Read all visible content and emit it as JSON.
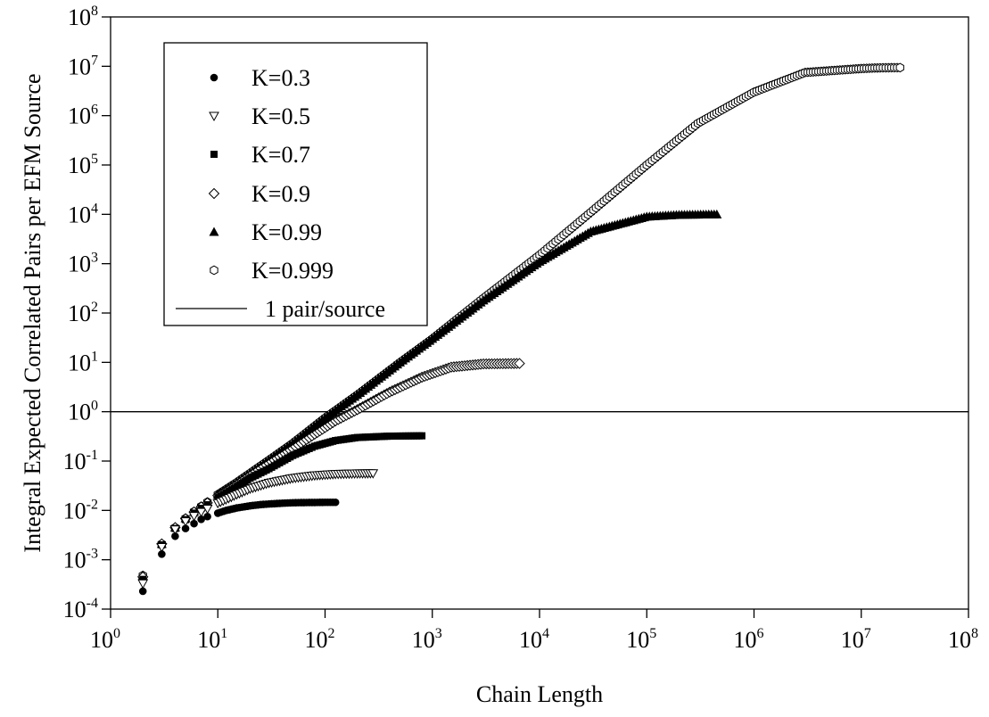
{
  "chart_data": {
    "type": "scatter",
    "title": "",
    "xlabel": "Chain Length",
    "ylabel": "Integral Expected Correlated Pairs per EFM Source",
    "x_scale": "log",
    "y_scale": "log",
    "xlim": [
      1,
      100000000
    ],
    "ylim": [
      0.0001,
      100000000
    ],
    "x_ticks": [
      {
        "base": "10",
        "exp": "0",
        "value": 1
      },
      {
        "base": "10",
        "exp": "1",
        "value": 10
      },
      {
        "base": "10",
        "exp": "2",
        "value": 100
      },
      {
        "base": "10",
        "exp": "3",
        "value": 1000
      },
      {
        "base": "10",
        "exp": "4",
        "value": 10000
      },
      {
        "base": "10",
        "exp": "5",
        "value": 100000
      },
      {
        "base": "10",
        "exp": "6",
        "value": 1000000
      },
      {
        "base": "10",
        "exp": "7",
        "value": 10000000
      },
      {
        "base": "10",
        "exp": "8",
        "value": 100000000
      }
    ],
    "y_ticks": [
      {
        "base": "10",
        "exp": "-4",
        "value": 0.0001
      },
      {
        "base": "10",
        "exp": "-3",
        "value": 0.001
      },
      {
        "base": "10",
        "exp": "-2",
        "value": 0.01
      },
      {
        "base": "10",
        "exp": "-1",
        "value": 0.1
      },
      {
        "base": "10",
        "exp": "0",
        "value": 1
      },
      {
        "base": "10",
        "exp": "1",
        "value": 10
      },
      {
        "base": "10",
        "exp": "2",
        "value": 100
      },
      {
        "base": "10",
        "exp": "3",
        "value": 1000
      },
      {
        "base": "10",
        "exp": "4",
        "value": 10000
      },
      {
        "base": "10",
        "exp": "5",
        "value": 100000
      },
      {
        "base": "10",
        "exp": "6",
        "value": 1000000
      },
      {
        "base": "10",
        "exp": "7",
        "value": 10000000
      },
      {
        "base": "10",
        "exp": "8",
        "value": 100000000
      }
    ],
    "grid": false,
    "legend_position": "top-left",
    "series": [
      {
        "name": "K=0.3",
        "marker": "filled-circle",
        "x": [
          2,
          3,
          4,
          5,
          6,
          7,
          8,
          10,
          12,
          15,
          20,
          25,
          30,
          40,
          50,
          60,
          80,
          100,
          125
        ],
        "y": [
          0.00023,
          0.0013,
          0.003,
          0.0043,
          0.0054,
          0.0066,
          0.0075,
          0.0088,
          0.01,
          0.0112,
          0.0124,
          0.0131,
          0.0135,
          0.014,
          0.0143,
          0.0144,
          0.0145,
          0.0146,
          0.0146
        ]
      },
      {
        "name": "K=0.5",
        "marker": "open-triangle-down",
        "x": [
          2,
          3,
          4,
          5,
          6,
          7,
          8,
          10,
          15,
          20,
          30,
          50,
          80,
          125,
          200,
          280
        ],
        "y": [
          0.00033,
          0.0018,
          0.0041,
          0.006,
          0.0077,
          0.0093,
          0.0108,
          0.014,
          0.021,
          0.0275,
          0.036,
          0.045,
          0.051,
          0.0545,
          0.056,
          0.0565
        ]
      },
      {
        "name": "K=0.7",
        "marker": "filled-square",
        "x": [
          2,
          3,
          4,
          5,
          6,
          7,
          8,
          10,
          15,
          20,
          30,
          50,
          80,
          125,
          200,
          400,
          800
        ],
        "y": [
          0.0004,
          0.002,
          0.0043,
          0.0065,
          0.0088,
          0.011,
          0.013,
          0.018,
          0.03,
          0.045,
          0.07,
          0.13,
          0.2,
          0.26,
          0.3,
          0.32,
          0.325
        ]
      },
      {
        "name": "K=0.9",
        "marker": "open-diamond",
        "x": [
          2,
          3,
          4,
          5,
          6,
          7,
          8,
          10,
          15,
          20,
          30,
          50,
          80,
          125,
          200,
          400,
          800,
          1500,
          3000,
          6500
        ],
        "y": [
          0.00045,
          0.0021,
          0.0045,
          0.0068,
          0.0093,
          0.0118,
          0.0142,
          0.02,
          0.034,
          0.052,
          0.09,
          0.18,
          0.35,
          0.65,
          1.1,
          2.5,
          5.0,
          8.0,
          9.3,
          9.5
        ]
      },
      {
        "name": "K=0.99",
        "marker": "filled-triangle-up",
        "x": [
          2,
          3,
          4,
          5,
          6,
          7,
          8,
          10,
          15,
          20,
          30,
          50,
          100,
          200,
          500,
          1000,
          3000,
          10000,
          30000,
          100000,
          200000,
          450000
        ],
        "y": [
          0.00048,
          0.0021,
          0.0045,
          0.0069,
          0.0095,
          0.0121,
          0.0147,
          0.021,
          0.037,
          0.057,
          0.105,
          0.23,
          0.75,
          2.2,
          10.0,
          30.0,
          180.0,
          1100.0,
          4500.0,
          9000.0,
          9800.0,
          10000.0
        ]
      },
      {
        "name": "K=0.999",
        "marker": "open-hexagon",
        "x": [
          2,
          3,
          4,
          5,
          6,
          7,
          8,
          10,
          15,
          20,
          30,
          50,
          100,
          200,
          500,
          1000,
          3000,
          10000,
          30000,
          100000,
          300000,
          1000000,
          3000000,
          10000000,
          15000000,
          23000000
        ],
        "y": [
          0.00048,
          0.0021,
          0.0045,
          0.0069,
          0.0095,
          0.0121,
          0.0148,
          0.021,
          0.037,
          0.057,
          0.105,
          0.23,
          0.75,
          2.2,
          10.0,
          30.0,
          200.0,
          1500.0,
          11000.0,
          100000.0,
          700000.0,
          3000000.0,
          7500000.0,
          9000000.0,
          9300000.0,
          9400000.0
        ]
      }
    ],
    "reference_line": {
      "name": "1 pair/source",
      "y": 1
    }
  }
}
